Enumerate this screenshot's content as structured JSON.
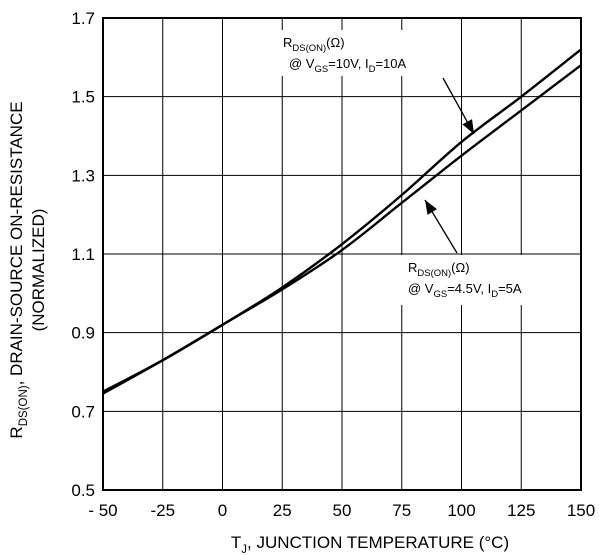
{
  "chart_data": {
    "type": "line",
    "xlabel": {
      "main": "T",
      "sub": "J",
      "rest": ", JUNCTION TEMPERATURE (°C)"
    },
    "ylabel": {
      "line1": {
        "main": "R",
        "sub": "DS(ON)",
        "rest": ", DRAIN-SOURCE ON-RESISTANCE"
      },
      "line2": "(NORMALIZED)"
    },
    "xlim": [
      -50,
      150
    ],
    "ylim": [
      0.5,
      1.7
    ],
    "xticks": [
      -50,
      -25,
      0,
      25,
      50,
      75,
      100,
      125,
      150
    ],
    "xtick_labels": [
      "- 50",
      "-25",
      "0",
      "25",
      "50",
      "75",
      "100",
      "125",
      "150"
    ],
    "yticks": [
      0.5,
      0.7,
      0.9,
      1.1,
      1.3,
      1.5,
      1.7
    ],
    "ytick_labels": [
      "0.5",
      "0.7",
      "0.9",
      "1.1",
      "1.3",
      "1.5",
      "1.7"
    ],
    "grid": true,
    "series": [
      {
        "x": [
          -50,
          -25,
          0,
          25,
          50,
          75,
          100,
          125,
          150
        ],
        "y": [
          0.75,
          0.83,
          0.92,
          1.015,
          1.125,
          1.25,
          1.385,
          1.5,
          1.62
        ]
      },
      {
        "x": [
          -50,
          -25,
          0,
          25,
          50,
          75,
          100,
          125,
          150
        ],
        "y": [
          0.745,
          0.83,
          0.92,
          1.01,
          1.11,
          1.23,
          1.35,
          1.465,
          1.58
        ]
      }
    ],
    "annotations": [
      {
        "line1": {
          "main": "R",
          "sub": "DS(ON)",
          "rest": "(Ω)"
        },
        "line2": {
          "p1": "@ V",
          "s1": "GS",
          "p2": "=10V, I",
          "s2": "D",
          "p3": "=10A"
        }
      },
      {
        "line1": {
          "main": "R",
          "sub": "DS(ON)",
          "rest": "(Ω)"
        },
        "line2": {
          "p1": "@ V",
          "s1": "GS",
          "p2": "=4.5V, I",
          "s2": "D",
          "p3": "=5A"
        }
      }
    ]
  }
}
